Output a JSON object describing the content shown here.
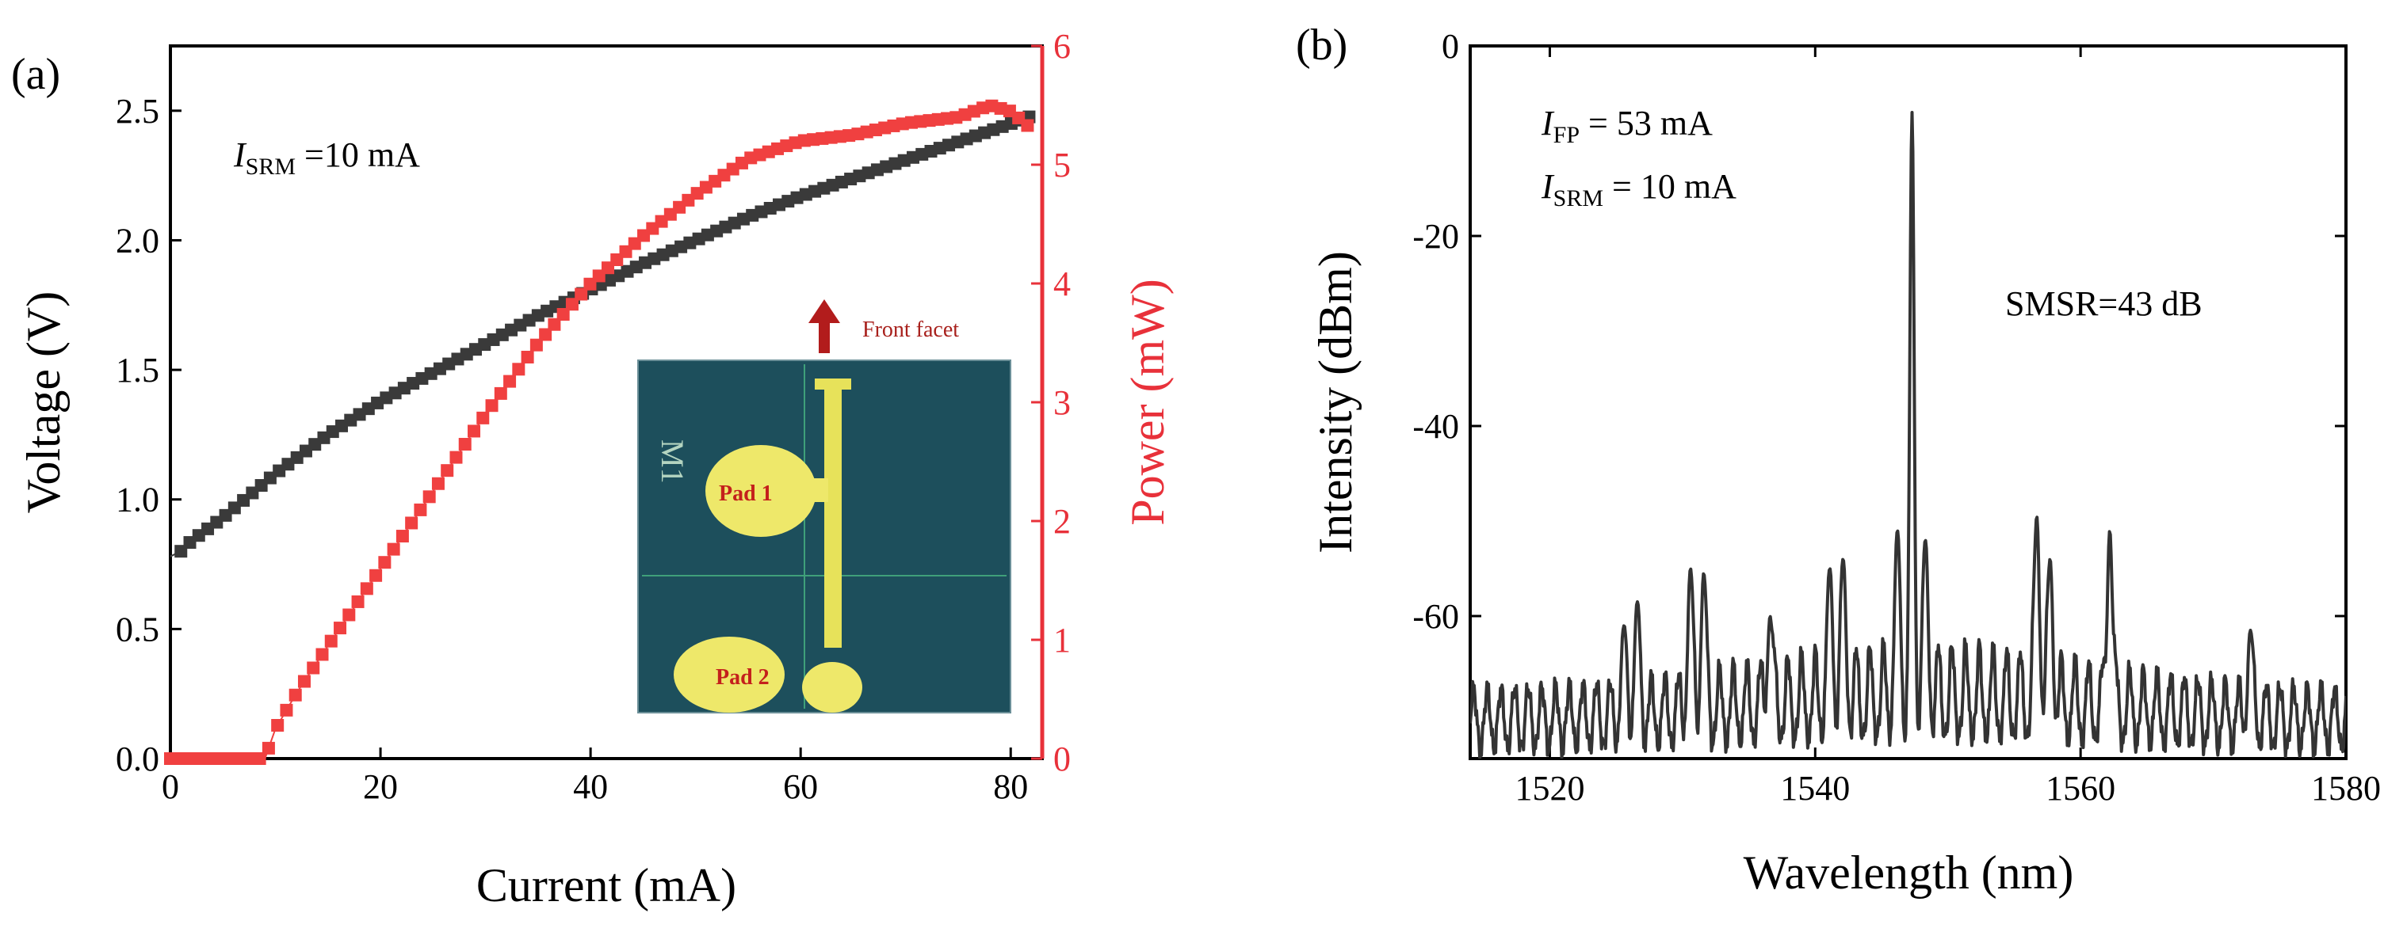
{
  "chart_data": [
    {
      "panel_label": "(a)",
      "type": "line",
      "xlabel": "Current (mA)",
      "ylabel": "Voltage (V)",
      "y2label": "Power (mW)",
      "xlim": [
        0,
        83
      ],
      "ylim": [
        0,
        2.75
      ],
      "y2lim": [
        0,
        6
      ],
      "xticks": [
        "0",
        "20",
        "40",
        "60",
        "80"
      ],
      "yticks": [
        "0.0",
        "0.5",
        "1.0",
        "1.5",
        "2.0",
        "2.5"
      ],
      "y2ticks": [
        "0",
        "1",
        "2",
        "3",
        "4",
        "5",
        "6"
      ],
      "annotation": {
        "main": "I",
        "sub": "SRM",
        "rest": " =10 mA"
      },
      "series": [
        {
          "name": "Voltage",
          "axis": "left",
          "color": "#3a3a3a",
          "marker": "square",
          "x": [
            0,
            1,
            2,
            5,
            10,
            15,
            20,
            25,
            30,
            35,
            40,
            45,
            50,
            55,
            60,
            65,
            70,
            75,
            80,
            82
          ],
          "values": [
            0.78,
            0.8,
            0.84,
            0.93,
            1.1,
            1.25,
            1.38,
            1.49,
            1.6,
            1.71,
            1.81,
            1.91,
            2.0,
            2.09,
            2.17,
            2.24,
            2.31,
            2.38,
            2.45,
            2.48
          ]
        },
        {
          "name": "Power",
          "axis": "right",
          "color": "#f04040",
          "marker": "square",
          "x": [
            0,
            4,
            8,
            9,
            10,
            12,
            15,
            20,
            25,
            30,
            35,
            40,
            45,
            50,
            55,
            60,
            65,
            70,
            75,
            78,
            80,
            82
          ],
          "values": [
            0,
            0,
            0,
            0,
            0.25,
            0.55,
            0.95,
            1.6,
            2.25,
            2.9,
            3.5,
            4.0,
            4.4,
            4.75,
            5.05,
            5.2,
            5.25,
            5.35,
            5.4,
            5.5,
            5.45,
            5.3
          ]
        }
      ],
      "inset": {
        "description_labels": {
          "arrow": "Front facet",
          "pad1": "Pad 1",
          "pad2": "Pad 2",
          "marker": "M1"
        }
      }
    },
    {
      "panel_label": "(b)",
      "type": "line",
      "xlabel": "Wavelength (nm)",
      "ylabel": "Intensity (dBm)",
      "xlim": [
        1514,
        1580
      ],
      "ylim": [
        -75,
        0
      ],
      "xticks": [
        "1520",
        "1540",
        "1560",
        "1580"
      ],
      "yticks": [
        "0",
        "-20",
        "-40",
        "-60"
      ],
      "annotations": [
        {
          "main": "I",
          "sub": "FP",
          "rest": " = 53 mA"
        },
        {
          "main": "I",
          "sub": "SRM",
          "rest": " = 10 mA"
        },
        {
          "main": "SMSR=43 dB",
          "sub": "",
          "rest": ""
        }
      ],
      "peak": {
        "x": 1547.3,
        "y": -7
      },
      "side_modes": [
        {
          "x": 1525.6,
          "y": -61
        },
        {
          "x": 1526.6,
          "y": -58.5
        },
        {
          "x": 1530.6,
          "y": -55
        },
        {
          "x": 1531.6,
          "y": -55.5
        },
        {
          "x": 1536.6,
          "y": -60
        },
        {
          "x": 1541.1,
          "y": -55
        },
        {
          "x": 1542.1,
          "y": -54
        },
        {
          "x": 1546.2,
          "y": -51
        },
        {
          "x": 1548.3,
          "y": -52
        },
        {
          "x": 1556.7,
          "y": -49.5
        },
        {
          "x": 1557.7,
          "y": -54
        },
        {
          "x": 1562.2,
          "y": -51
        },
        {
          "x": 1572.8,
          "y": -61.5
        }
      ],
      "color": "#333333"
    }
  ]
}
